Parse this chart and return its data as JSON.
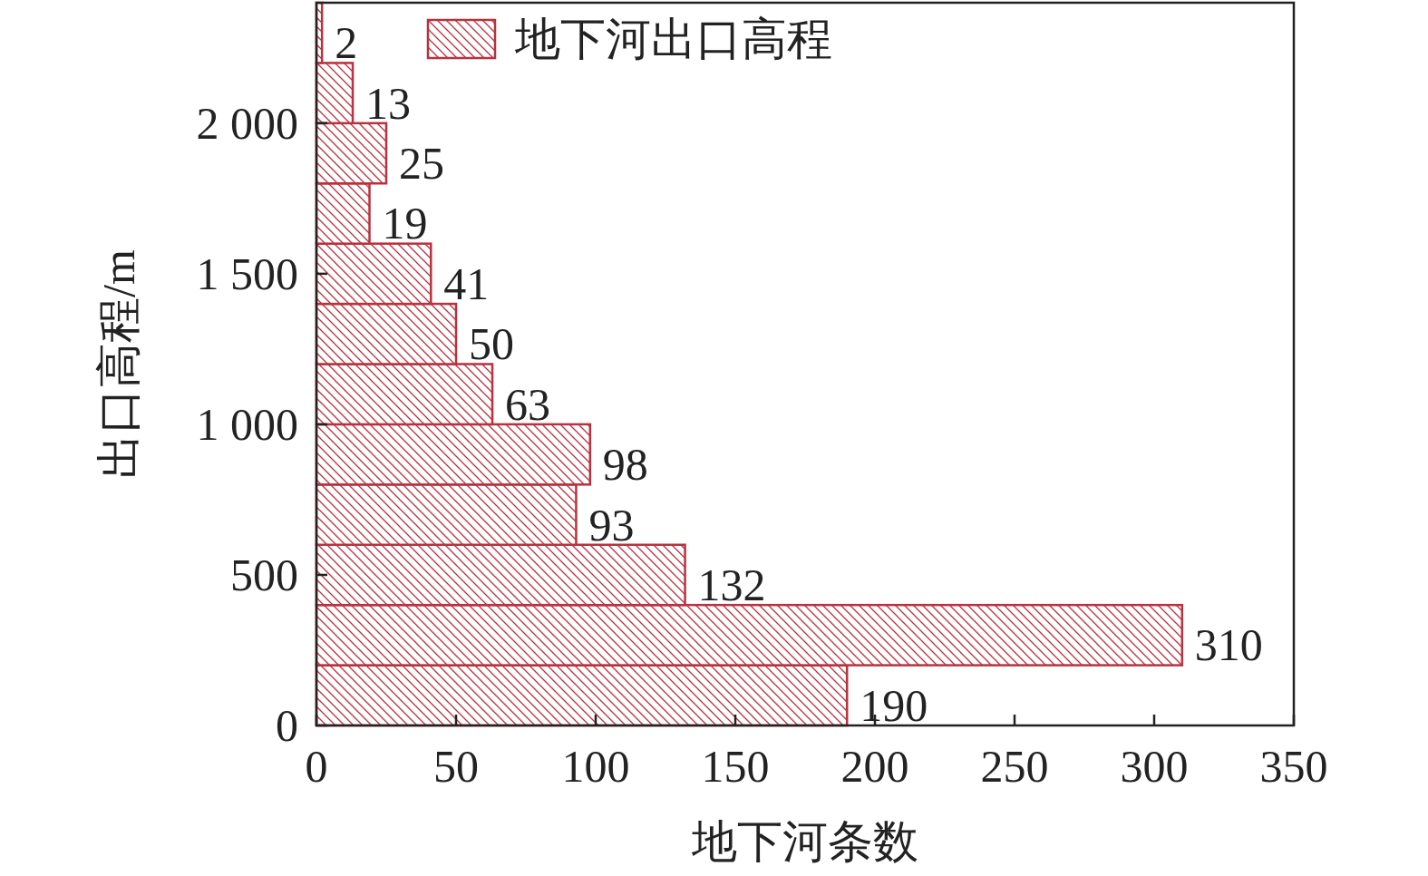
{
  "chart_data": {
    "type": "histogram",
    "orientation": "horizontal",
    "xlabel": "地下河条数",
    "ylabel": "出口高程/m",
    "bins": [
      0,
      200,
      400,
      600,
      800,
      1000,
      1200,
      1400,
      1600,
      1800,
      2000,
      2200,
      2400
    ],
    "series": [
      {
        "name": "地下河出口高程",
        "color": "#b8323f",
        "values": [
          190,
          310,
          132,
          93,
          98,
          63,
          50,
          41,
          19,
          25,
          13,
          2
        ]
      }
    ],
    "xlim": [
      0,
      350
    ],
    "xticks": [
      0,
      50,
      100,
      150,
      200,
      250,
      300,
      350
    ],
    "ylim": [
      0,
      2400
    ],
    "yticks": [
      0,
      500,
      {
        "value": 1000,
        "label": "1 000"
      },
      {
        "value": 1500,
        "label": "1 500"
      },
      {
        "value": 2000,
        "label": "2 000"
      }
    ],
    "data_labels": true,
    "legend": "top",
    "grid": false
  }
}
